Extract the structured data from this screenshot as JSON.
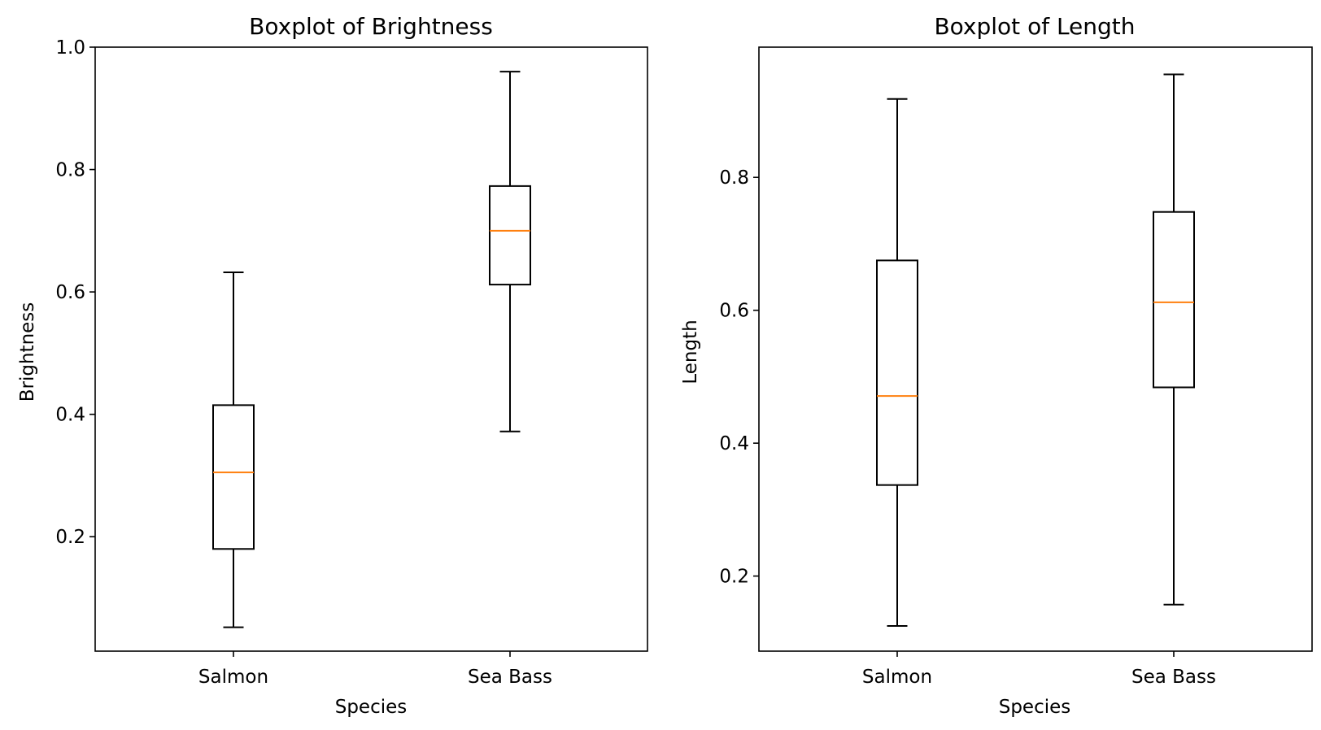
{
  "chart_data": [
    {
      "type": "box",
      "title": "Boxplot of Brightness",
      "xlabel": "Species",
      "ylabel": "Brightness",
      "categories": [
        "Salmon",
        "Sea Bass"
      ],
      "ylim": [
        0.013,
        1.0
      ],
      "yticks": [
        0.2,
        0.4,
        0.6,
        0.8,
        1.0
      ],
      "ytick_labels": [
        "0.2",
        "0.4",
        "0.6",
        "0.8",
        "1.0"
      ],
      "grid": false,
      "boxes": [
        {
          "category": "Salmon",
          "whisker_low": 0.052,
          "q1": 0.18,
          "median": 0.305,
          "q3": 0.415,
          "whisker_high": 0.632
        },
        {
          "category": "Sea Bass",
          "whisker_low": 0.372,
          "q1": 0.612,
          "median": 0.7,
          "q3": 0.773,
          "whisker_high": 0.96
        }
      ],
      "colors": {
        "box": "#000000",
        "median": "#ff7f0e"
      }
    },
    {
      "type": "box",
      "title": "Boxplot of Length",
      "xlabel": "Species",
      "ylabel": "Length",
      "categories": [
        "Salmon",
        "Sea Bass"
      ],
      "ylim": [
        0.087,
        0.996
      ],
      "yticks": [
        0.2,
        0.4,
        0.6,
        0.8
      ],
      "ytick_labels": [
        "0.2",
        "0.4",
        "0.6",
        "0.8"
      ],
      "grid": false,
      "boxes": [
        {
          "category": "Salmon",
          "whisker_low": 0.125,
          "q1": 0.337,
          "median": 0.471,
          "q3": 0.675,
          "whisker_high": 0.918
        },
        {
          "category": "Sea Bass",
          "whisker_low": 0.157,
          "q1": 0.484,
          "median": 0.612,
          "q3": 0.748,
          "whisker_high": 0.955
        }
      ],
      "colors": {
        "box": "#000000",
        "median": "#ff7f0e"
      }
    }
  ]
}
